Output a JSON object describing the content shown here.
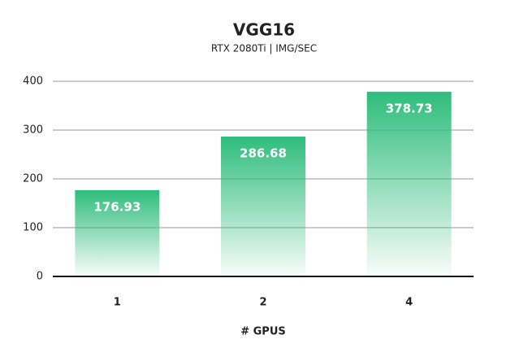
{
  "chart_data": {
    "type": "bar",
    "title": "VGG16",
    "subtitle": "RTX 2080Ti | IMG/SEC",
    "x_label": "# GPUS",
    "categories": [
      "1",
      "2",
      "4"
    ],
    "values": [
      176.93,
      286.68,
      378.73
    ],
    "color": "#2ebd7b",
    "ylim": [
      0,
      400
    ],
    "yticks": [
      0,
      100,
      200,
      300,
      400
    ],
    "grid": true
  }
}
